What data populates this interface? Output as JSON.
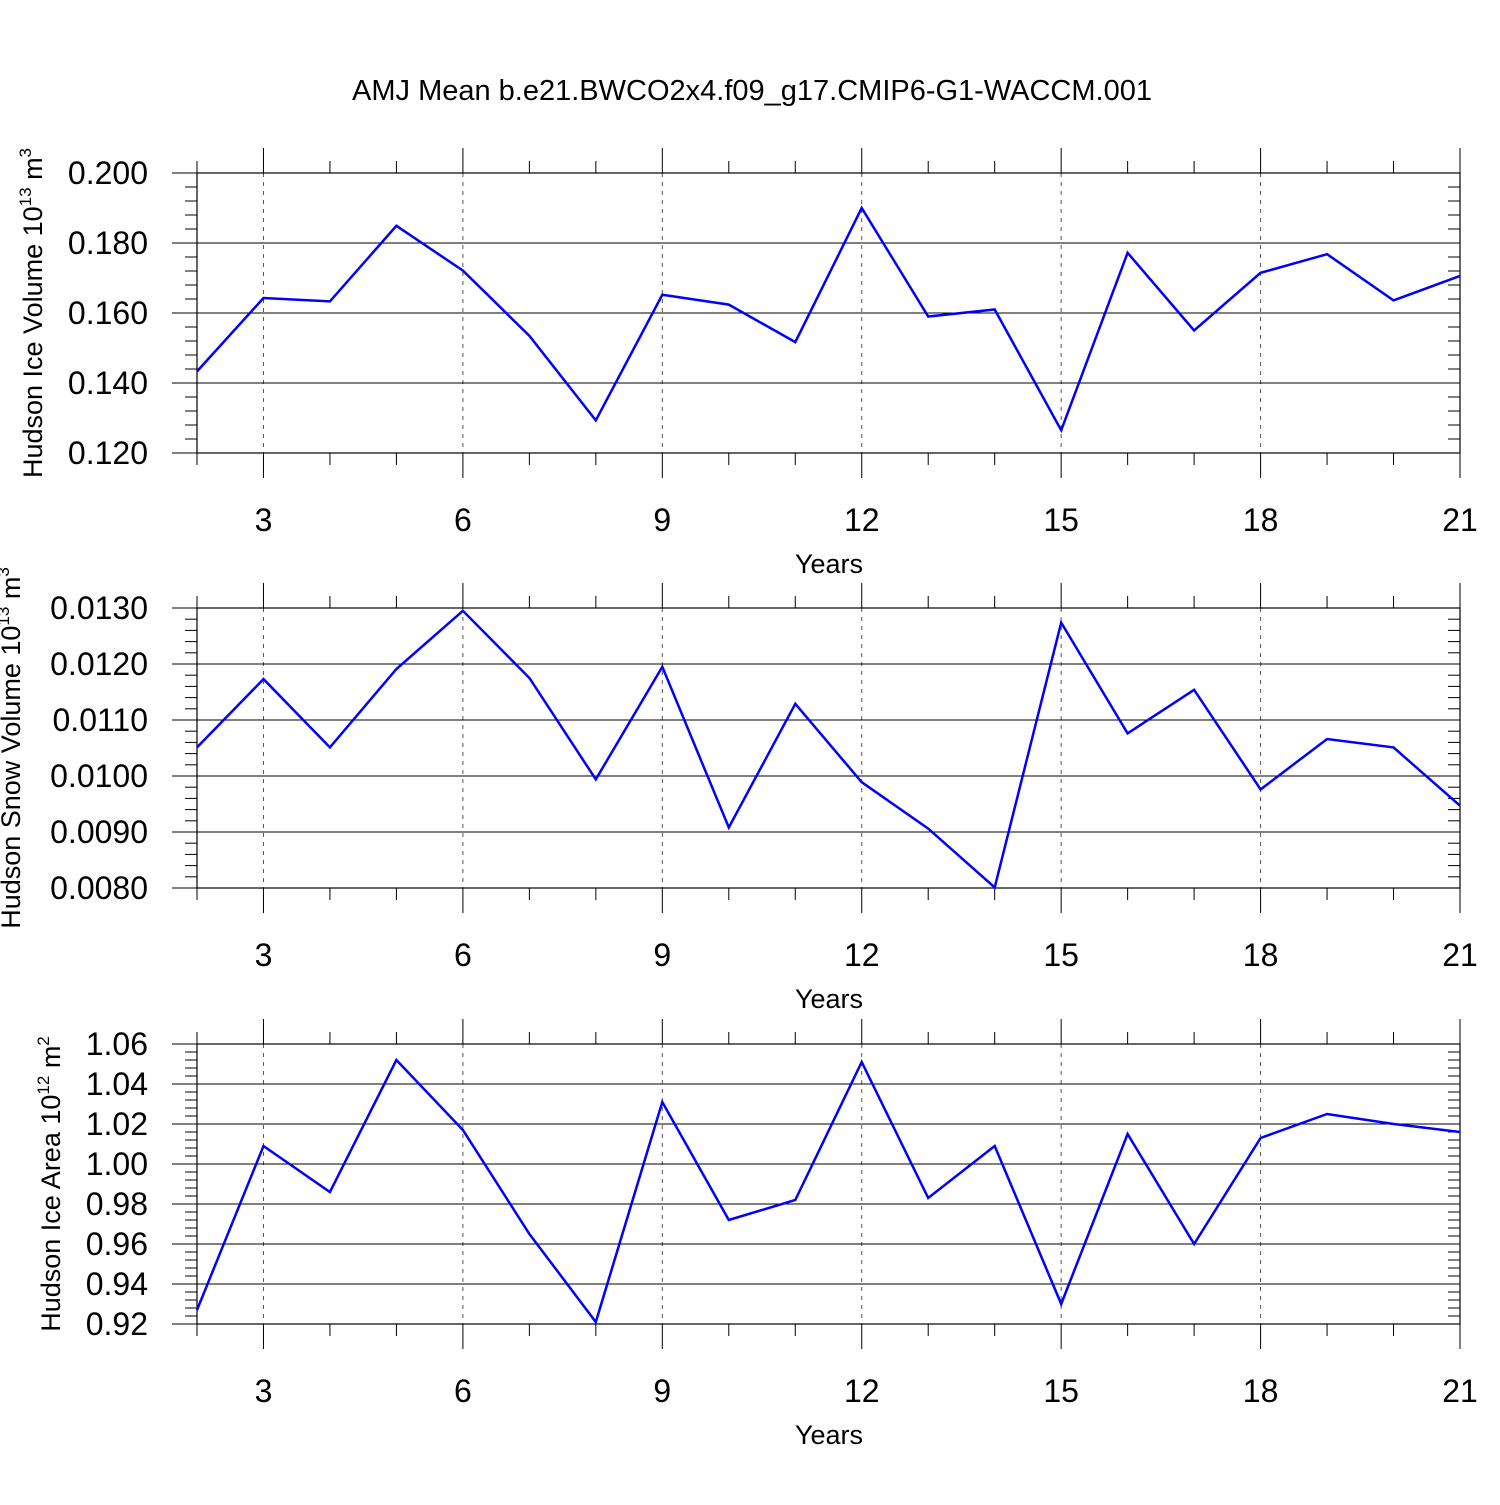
{
  "title": "AMJ Mean b.e21.BWCO2x4.f09_g17.CMIP6-G1-WACCM.001",
  "chart_data": [
    {
      "type": "line",
      "ylabel": "Hudson Ice Volume 10",
      "ylabel_exp": "13",
      "ylabel_unit": "m",
      "ylabel_unit_exp": "3",
      "xlabel": "Years",
      "xlim": [
        2,
        21
      ],
      "ylim": [
        0.12,
        0.2
      ],
      "xticks": [
        3,
        6,
        9,
        12,
        15,
        18,
        21
      ],
      "yticks": [
        "0.120",
        "0.140",
        "0.160",
        "0.180",
        "0.200"
      ],
      "ytick_values": [
        0.12,
        0.14,
        0.16,
        0.18,
        0.2
      ],
      "grid": "vertical dashed",
      "line_color": "#0000ff",
      "x": [
        2,
        3,
        4,
        5,
        6,
        7,
        8,
        9,
        10,
        11,
        12,
        13,
        14,
        15,
        16,
        17,
        18,
        19,
        20,
        21
      ],
      "values": [
        0.1433,
        0.1643,
        0.1633,
        0.1849,
        0.1721,
        0.1535,
        0.1293,
        0.1652,
        0.1624,
        0.1517,
        0.19,
        0.159,
        0.161,
        0.1265,
        0.1772,
        0.155,
        0.1715,
        0.1768,
        0.1636,
        0.1706
      ]
    },
    {
      "type": "line",
      "ylabel": "Hudson Snow Volume 10",
      "ylabel_exp": "13",
      "ylabel_unit": "m",
      "ylabel_unit_exp": "3",
      "xlabel": "Years",
      "xlim": [
        2,
        21
      ],
      "ylim": [
        0.008,
        0.013
      ],
      "xticks": [
        3,
        6,
        9,
        12,
        15,
        18,
        21
      ],
      "yticks": [
        "0.0080",
        "0.0090",
        "0.0100",
        "0.0110",
        "0.0120",
        "0.0130"
      ],
      "ytick_values": [
        0.008,
        0.009,
        0.01,
        0.011,
        0.012,
        0.013
      ],
      "grid": "vertical dashed",
      "line_color": "#0000ff",
      "x": [
        2,
        3,
        4,
        5,
        6,
        7,
        8,
        9,
        10,
        11,
        12,
        13,
        14,
        15,
        16,
        17,
        18,
        19,
        20,
        21
      ],
      "values": [
        0.01051,
        0.01173,
        0.01051,
        0.01191,
        0.01295,
        0.01175,
        0.00994,
        0.01195,
        0.00908,
        0.01129,
        0.00989,
        0.00906,
        0.00801,
        0.01274,
        0.01076,
        0.01154,
        0.00976,
        0.01066,
        0.01051,
        0.00947
      ]
    },
    {
      "type": "line",
      "ylabel": "Hudson Ice Area 10",
      "ylabel_exp": "12",
      "ylabel_unit": "m",
      "ylabel_unit_exp": "2",
      "xlabel": "Years",
      "xlim": [
        2,
        21
      ],
      "ylim": [
        0.92,
        1.06
      ],
      "xticks": [
        3,
        6,
        9,
        12,
        15,
        18,
        21
      ],
      "yticks": [
        "0.92",
        "0.94",
        "0.96",
        "0.98",
        "1.00",
        "1.02",
        "1.04",
        "1.06"
      ],
      "ytick_values": [
        0.92,
        0.94,
        0.96,
        0.98,
        1.0,
        1.02,
        1.04,
        1.06
      ],
      "grid": "vertical dashed",
      "line_color": "#0000ff",
      "x": [
        2,
        3,
        4,
        5,
        6,
        7,
        8,
        9,
        10,
        11,
        12,
        13,
        14,
        15,
        16,
        17,
        18,
        19,
        20,
        21
      ],
      "values": [
        0.927,
        1.009,
        0.986,
        1.052,
        1.017,
        0.965,
        0.921,
        1.031,
        0.972,
        0.982,
        1.051,
        0.983,
        1.009,
        0.93,
        1.015,
        0.96,
        1.013,
        1.025,
        1.02,
        1.016
      ]
    }
  ]
}
